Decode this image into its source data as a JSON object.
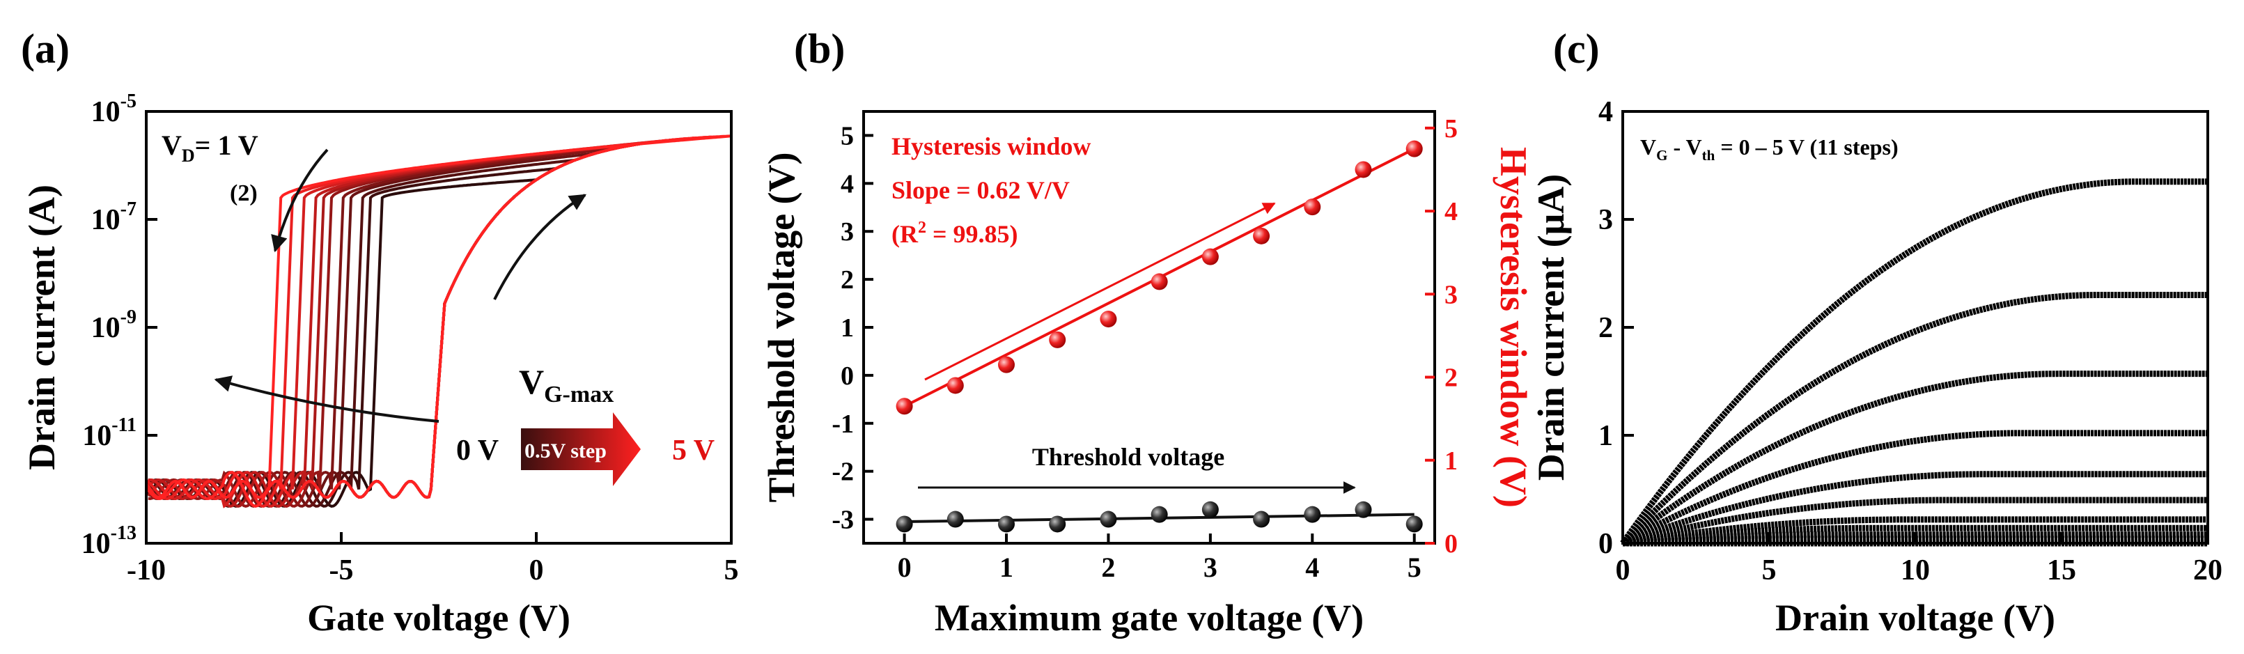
{
  "chart_data": [
    {
      "panel": "(a)",
      "type": "line",
      "xlabel": "Gate voltage (V)",
      "ylabel": "Drain current (A)",
      "xlim": [
        -10,
        5
      ],
      "ylim_log10": [
        -13,
        -5
      ],
      "yscale": "log",
      "xticks": [
        "-10",
        "-5",
        "0",
        "5"
      ],
      "yticks": [
        {
          "base": "10",
          "exp": "-13"
        },
        {
          "base": "10",
          "exp": "-11"
        },
        {
          "base": "10",
          "exp": "-9"
        },
        {
          "base": "10",
          "exp": "-7"
        },
        {
          "base": "10",
          "exp": "-5"
        }
      ],
      "vd_label": {
        "main": "V",
        "sub": "D",
        "rest": "= 1 V"
      },
      "sweep_label": "(2)",
      "vgmax_label": {
        "main": "V",
        "sub": "G-max"
      },
      "gradient_labels": {
        "start": "0 V",
        "step": "0.5V step",
        "end": "5 V"
      },
      "series_vgmax": [
        0,
        0.5,
        1,
        1.5,
        2,
        2.5,
        3,
        3.5,
        4,
        4.5,
        5
      ],
      "forward_threshold_v": -2.6,
      "reverse_threshold_v": [
        -4.2,
        -4.5,
        -4.7,
        -5.0,
        -5.2,
        -5.5,
        -5.7,
        -5.9,
        -6.2,
        -6.5,
        -6.8
      ],
      "on_current_log10": -5.4,
      "off_current_log10": -12.0,
      "colors": {
        "dark": "#2a0c0c",
        "bright": "#ff2222"
      }
    },
    {
      "panel": "(b)",
      "type": "scatter",
      "xlabel": "Maximum gate voltage (V)",
      "ylabel": "Threshold voltage (V)",
      "y2label": "Hysteresis window (V)",
      "xlim": [
        -0.4,
        5.2
      ],
      "ylim": [
        -3.5,
        5.5
      ],
      "y2lim": [
        0,
        5.2
      ],
      "xticks": [
        "0",
        "1",
        "2",
        "3",
        "4",
        "5"
      ],
      "yticks": [
        "-3",
        "-2",
        "-1",
        "0",
        "1",
        "2",
        "3",
        "4",
        "5"
      ],
      "y2ticks": [
        "0",
        "1",
        "2",
        "3",
        "4",
        "5"
      ],
      "x": [
        0,
        0.5,
        1,
        1.5,
        2,
        2.5,
        3,
        3.5,
        4,
        4.5,
        5
      ],
      "series": [
        {
          "name": "Threshold voltage",
          "axis": "left",
          "color": "#111111",
          "values": [
            -3.1,
            -3.0,
            -3.1,
            -3.1,
            -3.0,
            -2.9,
            -2.8,
            -3.0,
            -2.9,
            -2.8,
            -3.1
          ],
          "fit": [
            -3.05,
            -2.9
          ]
        },
        {
          "name": "Hysteresis window",
          "axis": "right",
          "color": "#ee1111",
          "values": [
            1.65,
            1.9,
            2.15,
            2.45,
            2.7,
            3.15,
            3.45,
            3.7,
            4.05,
            4.5,
            4.75
          ],
          "fit": [
            1.65,
            4.75
          ]
        }
      ],
      "annotations": {
        "title": "Hysteresis window",
        "slope": "Slope = 0.62 V/V",
        "r2_prefix": "(R",
        "r2_exp": "2",
        "r2_rest": " = 99.85)",
        "threshold_label": "Threshold voltage"
      }
    },
    {
      "panel": "(c)",
      "type": "line",
      "xlabel": "Drain voltage (V)",
      "ylabel": "Drain current (μA)",
      "xlim": [
        0,
        20
      ],
      "ylim": [
        0,
        4
      ],
      "xticks": [
        "0",
        "5",
        "10",
        "15",
        "20"
      ],
      "yticks": [
        "0",
        "1",
        "2",
        "3",
        "4"
      ],
      "condition_label": {
        "a": "V",
        "a_sub": "G",
        "mid": " - V",
        "b_sub": "th",
        "rest": " = 0 – 5 V (11 steps)"
      },
      "series_vg_minus_vth": [
        0,
        0.5,
        1,
        1.5,
        2,
        2.5,
        3,
        3.5,
        4,
        4.5,
        5
      ],
      "saturation_current_ua": [
        0.0,
        0.04,
        0.08,
        0.14,
        0.22,
        0.4,
        0.64,
        1.02,
        1.57,
        2.3,
        3.35
      ],
      "color": "#000000"
    }
  ]
}
